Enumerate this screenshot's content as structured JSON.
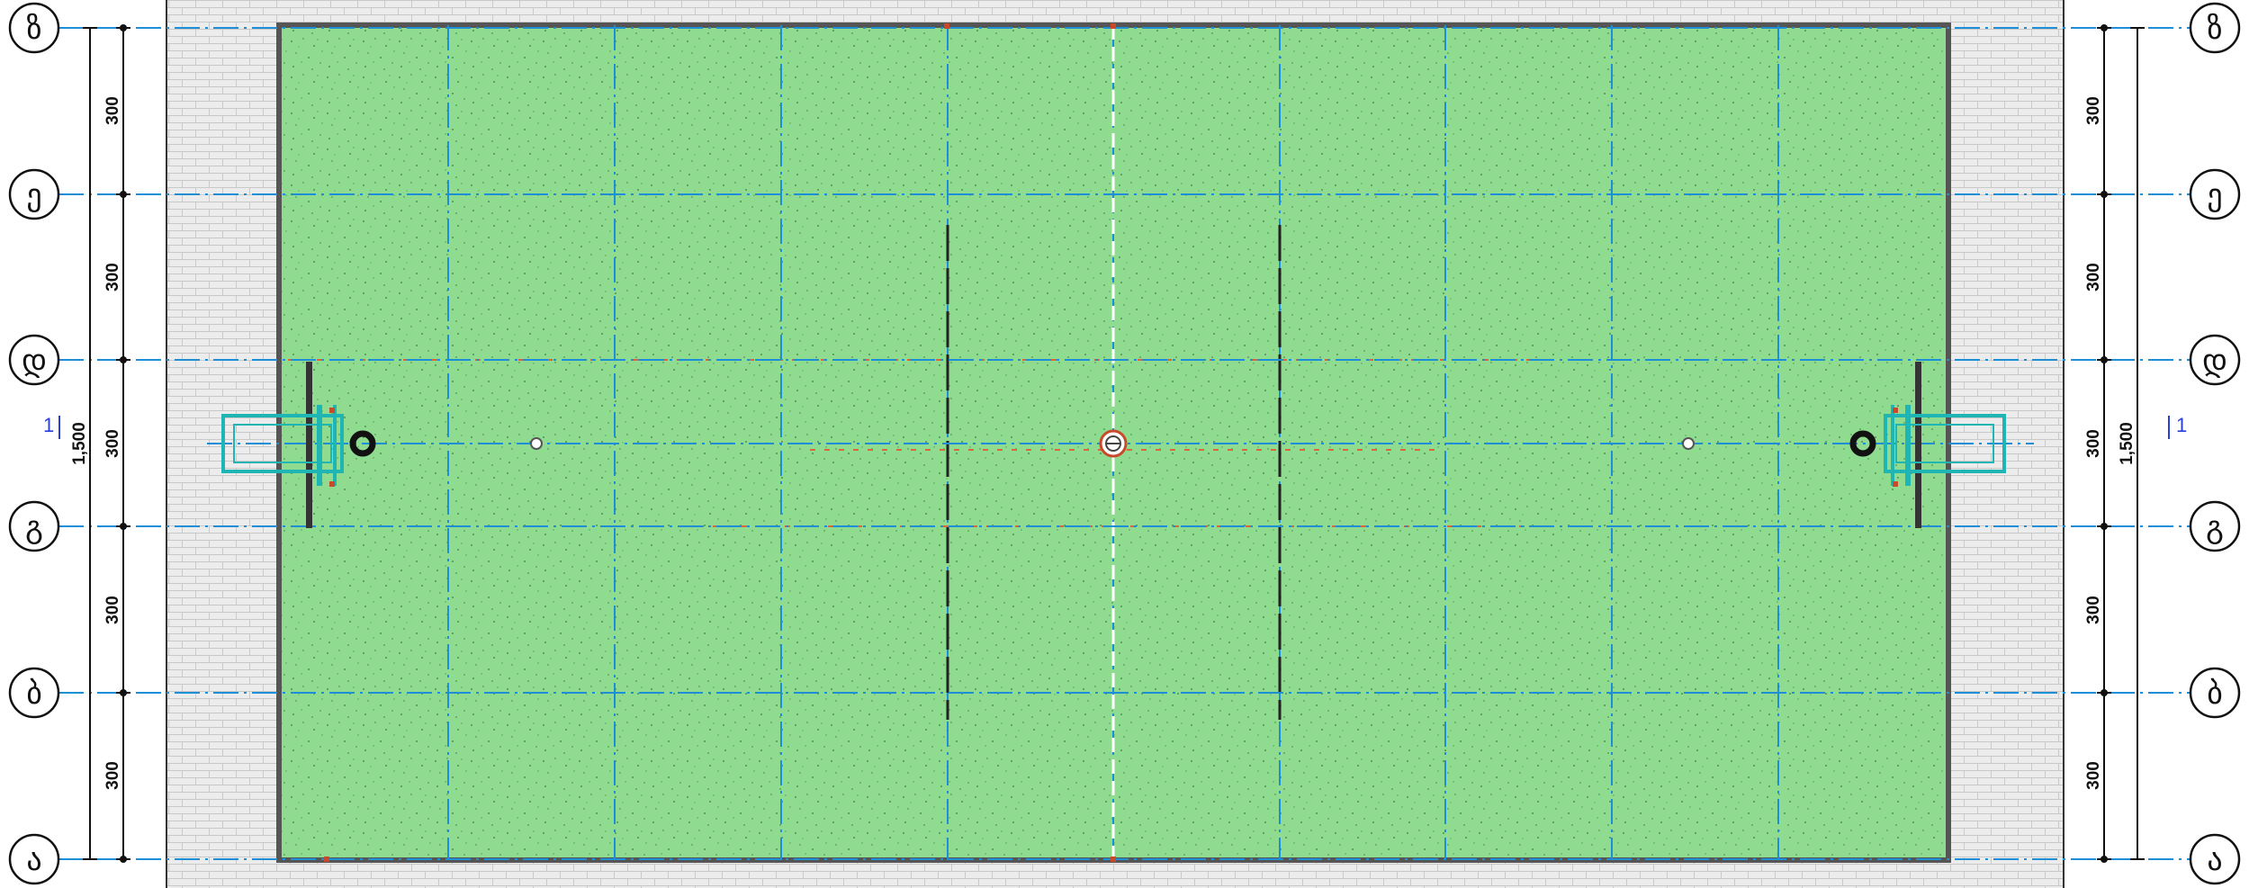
{
  "drawing": {
    "axes_horizontal": [
      {
        "id": "row-1",
        "label": "ზ"
      },
      {
        "id": "row-2",
        "label": "ე"
      },
      {
        "id": "row-3",
        "label": "დ"
      },
      {
        "id": "row-4",
        "label": "გ"
      },
      {
        "id": "row-5",
        "label": "ბ"
      },
      {
        "id": "row-6",
        "label": "ა"
      }
    ],
    "dimensions_left": {
      "segments": [
        "300",
        "300",
        "300",
        "300",
        "300"
      ],
      "total": "1,500"
    },
    "dimensions_right": {
      "segments": [
        "300",
        "300",
        "300",
        "300",
        "300"
      ],
      "total": "1,500"
    },
    "section_mark": {
      "left": "1",
      "right": "1"
    },
    "colors": {
      "field": "#8fdc90",
      "track": "#e2e2e2",
      "grid_line": "#1e8fd6",
      "goal": "#1fb5b5",
      "marking": "#c84a2a",
      "outline": "#555555"
    },
    "icons": {
      "center-spot": "circle-icon",
      "goal-post": "goal-frame-icon",
      "axis-bubble": "circle-bubble-icon"
    }
  }
}
